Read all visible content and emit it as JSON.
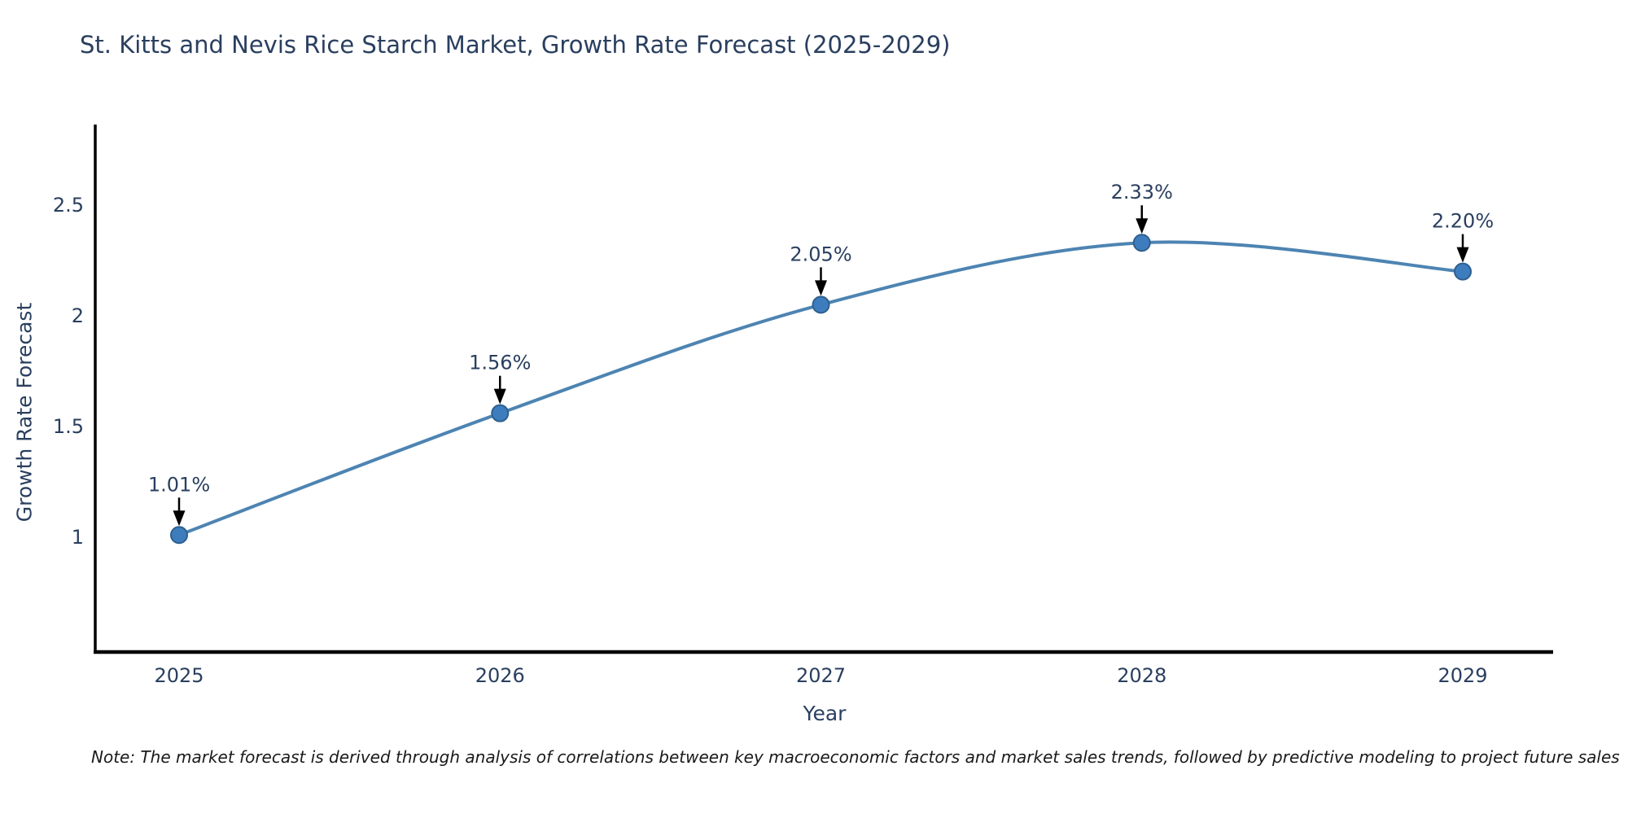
{
  "title": "St. Kitts and Nevis Rice Starch Market, Growth Rate Forecast (2025-2029)",
  "note": "Note: The market forecast is derived through analysis of correlations between key macroeconomic factors and market sales trends, followed by predictive modeling to project future sales",
  "chart_data": {
    "type": "line",
    "title": "St. Kitts and Nevis Rice Starch Market, Growth Rate Forecast (2025-2029)",
    "xlabel": "Year",
    "ylabel": "Growth Rate Forecast",
    "x": [
      "2025",
      "2026",
      "2027",
      "2028",
      "2029"
    ],
    "values": [
      1.01,
      1.56,
      2.05,
      2.33,
      2.2
    ],
    "point_labels": [
      "1.01%",
      "1.56%",
      "2.05%",
      "2.33%",
      "2.20%"
    ],
    "yticks": [
      1,
      1.5,
      2,
      2.5
    ],
    "ylim": [
      0.48,
      2.86
    ],
    "line_shape": "spline",
    "grid": false,
    "legend": "none",
    "colors": {
      "line": "#4d84b2",
      "marker_fill": "#3e7dbd",
      "marker_edge": "#2e5f8f",
      "axis_line": "#000000",
      "tick_text": "#2a3f5f",
      "annotation_text": "#2a3f5f",
      "annotation_arrow": "#000000",
      "background": "#ffffff"
    }
  }
}
